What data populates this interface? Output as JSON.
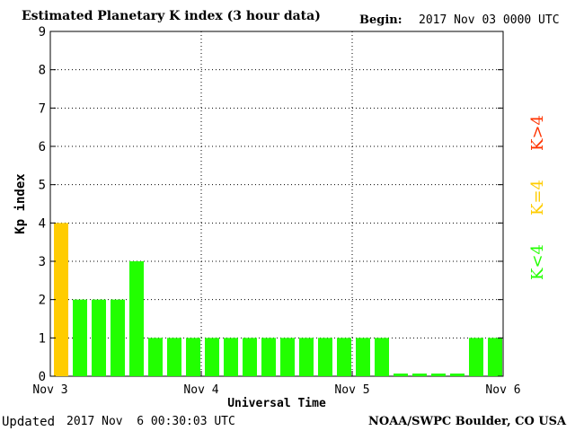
{
  "header": {
    "title": "Estimated Planetary K index (3 hour data)",
    "begin_label": "Begin:",
    "begin_value": "2017 Nov 03 0000 UTC"
  },
  "footer": {
    "updated_label": "Updated",
    "updated_value": "2017 Nov  6 00:30:03 UTC",
    "source": "NOAA/SWPC Boulder, CO USA"
  },
  "legend": {
    "gt4": {
      "label": "K>4",
      "color": "#ff3300"
    },
    "eq4": {
      "label": "K=4",
      "color": "#ffcc00"
    },
    "lt4": {
      "label": "K<4",
      "color": "#22ff00"
    }
  },
  "chart_data": {
    "type": "bar",
    "title": "Estimated Planetary K index (3 hour data)",
    "xlabel": "Universal Time",
    "ylabel": "Kp index",
    "ylim": [
      0,
      9
    ],
    "yticks": [
      0,
      1,
      2,
      3,
      4,
      5,
      6,
      7,
      8,
      9
    ],
    "xticks": [
      "Nov 3",
      "Nov 4",
      "Nov 5",
      "Nov 6"
    ],
    "grid": true,
    "colors": {
      "lt4": "#22ff00",
      "eq4": "#ffcc00",
      "gt4": "#ff3300"
    },
    "values": [
      4,
      2,
      2,
      2,
      3,
      1,
      1,
      1,
      1,
      1,
      1,
      1,
      1,
      1,
      1,
      1,
      1,
      1,
      0.07,
      0.07,
      0.07,
      0.07,
      1,
      1
    ]
  }
}
